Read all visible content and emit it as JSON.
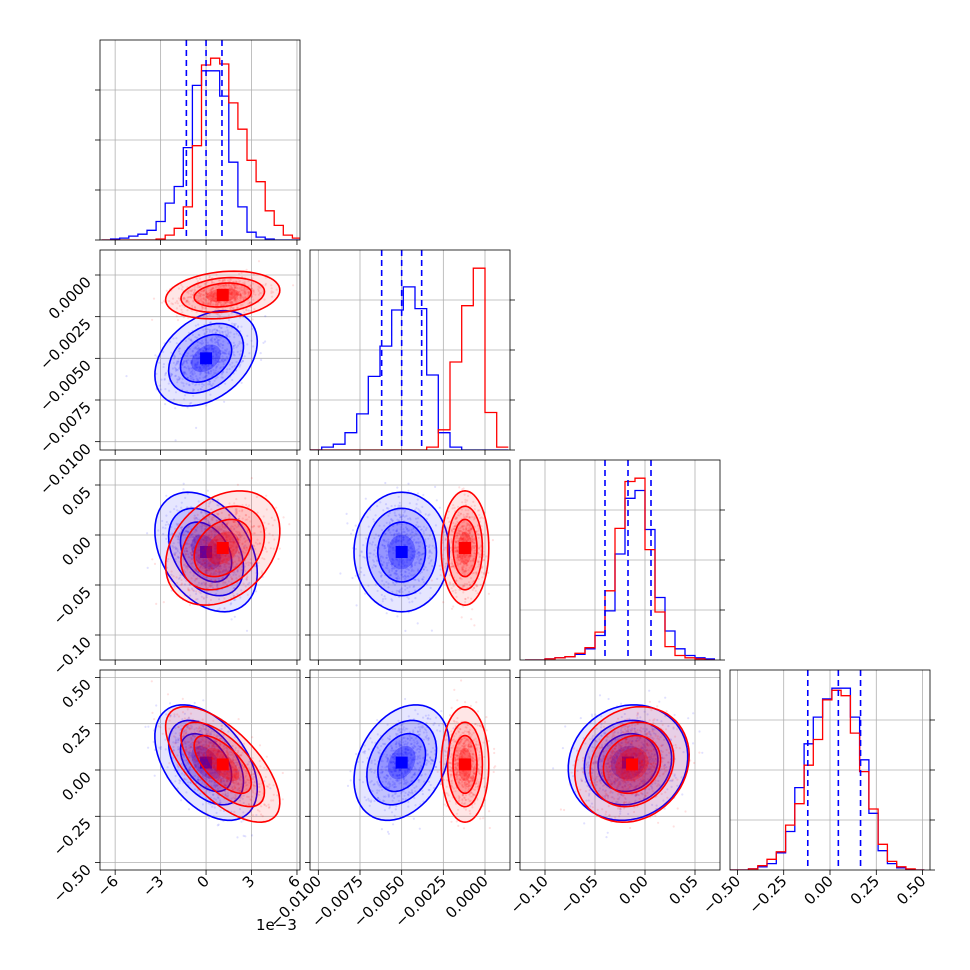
{
  "chart_data": {
    "type": "corner",
    "grid": true,
    "colors": {
      "blue": "#0000ff",
      "red": "#ff0000"
    },
    "series": [
      {
        "color": "blue"
      },
      {
        "color": "red"
      }
    ],
    "params": [
      {
        "range": [
          -7,
          6.2
        ],
        "ticks": [
          -6,
          -3,
          0,
          3,
          6
        ],
        "tick_labels": [
          "−6",
          "−3",
          "0",
          "3",
          "6"
        ],
        "offset_label": "1e−3",
        "quantiles": [
          -1.3,
          0.0,
          1.05
        ],
        "hist": {
          "bins": [
            -6.9,
            -6.3,
            -5.7,
            -5.1,
            -4.5,
            -3.9,
            -3.3,
            -2.7,
            -2.1,
            -1.5,
            -0.9,
            -0.3,
            0.3,
            0.9,
            1.5,
            2.1,
            2.7,
            3.3,
            3.9,
            4.5,
            5.1,
            5.7,
            6.3
          ],
          "blue": [
            0,
            1,
            2,
            4,
            6,
            10,
            19,
            38,
            55,
            95,
            159,
            174,
            174,
            148,
            80,
            34,
            8,
            3,
            1,
            0,
            0,
            0
          ],
          "red": [
            0,
            0,
            0,
            0,
            0,
            0,
            1,
            5,
            12,
            34,
            97,
            180,
            187,
            181,
            141,
            114,
            82,
            60,
            30,
            15,
            5,
            2
          ]
        }
      },
      {
        "range": [
          -0.0105,
          0.0015
        ],
        "ticks": [
          -0.01,
          -0.0075,
          -0.005,
          -0.0025,
          0.0
        ],
        "tick_labels": [
          "−0.0100",
          "−0.0075",
          "−0.0050",
          "−0.0025",
          "0.0000"
        ],
        "quantiles": [
          -0.0062,
          -0.005,
          -0.0038
        ],
        "hist": {
          "bins": [
            -0.0105,
            -0.0098,
            -0.0091,
            -0.0084,
            -0.0077,
            -0.007,
            -0.0063,
            -0.0056,
            -0.0049,
            -0.0042,
            -0.0035,
            -0.0028,
            -0.0021,
            -0.0014,
            -0.0007,
            0.0,
            0.0007,
            0.0014
          ],
          "blue": [
            0,
            2,
            4,
            12,
            25,
            51,
            72,
            97,
            113,
            98,
            52,
            12,
            2,
            0,
            0,
            0,
            0
          ],
          "red": [
            0,
            0,
            0,
            0,
            0,
            0,
            0,
            0,
            0,
            0,
            2,
            14,
            61,
            100,
            126,
            26,
            2
          ]
        }
      },
      {
        "range": [
          -0.125,
          0.075
        ],
        "ticks": [
          -0.1,
          -0.05,
          0.0,
          0.05
        ],
        "tick_labels": [
          "−0.10",
          "−0.05",
          "0.00",
          "0.05"
        ],
        "quantiles": [
          -0.04,
          -0.017,
          0.006
        ],
        "hist": {
          "bins": [
            -0.12,
            -0.11,
            -0.1,
            -0.09,
            -0.08,
            -0.07,
            -0.06,
            -0.05,
            -0.04,
            -0.03,
            -0.02,
            -0.01,
            0.0,
            0.01,
            0.02,
            0.03,
            0.04,
            0.05,
            0.06,
            0.07
          ],
          "blue": [
            0,
            0,
            1,
            2,
            3,
            5,
            10,
            22,
            44,
            95,
            145,
            152,
            117,
            56,
            26,
            10,
            4,
            2,
            1
          ],
          "red": [
            0,
            0,
            1,
            2,
            3,
            6,
            11,
            25,
            62,
            118,
            160,
            163,
            99,
            43,
            12,
            4,
            2,
            1,
            0
          ]
        }
      },
      {
        "range": [
          -0.54,
          0.54
        ],
        "ticks": [
          -0.5,
          -0.25,
          0.0,
          0.25,
          0.5
        ],
        "tick_labels": [
          "−0.50",
          "−0.25",
          "0.00",
          "0.25",
          "0.50"
        ],
        "quantiles": [
          -0.12,
          0.045,
          0.165
        ],
        "hist": {
          "bins": [
            -0.54,
            -0.49,
            -0.44,
            -0.39,
            -0.34,
            -0.29,
            -0.24,
            -0.19,
            -0.14,
            -0.09,
            -0.04,
            0.01,
            0.06,
            0.11,
            0.16,
            0.21,
            0.26,
            0.31,
            0.36,
            0.41,
            0.46,
            0.51
          ],
          "blue": [
            0,
            0,
            1,
            3,
            6,
            16,
            36,
            77,
            118,
            143,
            160,
            170,
            170,
            143,
            103,
            53,
            18,
            6,
            2,
            0,
            0
          ],
          "red": [
            0,
            0,
            1,
            4,
            10,
            17,
            42,
            62,
            98,
            122,
            159,
            168,
            163,
            128,
            92,
            57,
            24,
            8,
            3,
            1,
            0
          ]
        }
      }
    ],
    "pairs": [
      {
        "x": 0,
        "y": 1,
        "blue": {
          "mean": [
            0.0,
            -0.005
          ],
          "sd": [
            1.3,
            0.0011
          ],
          "rho": 0.35
        },
        "red": {
          "mean": [
            1.1,
            -0.0012
          ],
          "sd": [
            1.45,
            0.00055
          ],
          "rho": 0.2
        }
      },
      {
        "x": 0,
        "y": 2,
        "blue": {
          "mean": [
            0.0,
            -0.017
          ],
          "sd": [
            1.3,
            0.023
          ],
          "rho": -0.35
        },
        "red": {
          "mean": [
            1.1,
            -0.013
          ],
          "sd": [
            1.45,
            0.022
          ],
          "rho": 0.3
        }
      },
      {
        "x": 1,
        "y": 2,
        "blue": {
          "mean": [
            -0.005,
            -0.017
          ],
          "sd": [
            0.0011,
            0.023
          ],
          "rho": 0.0
        },
        "red": {
          "mean": [
            -0.0012,
            -0.013
          ],
          "sd": [
            0.00055,
            0.022
          ],
          "rho": 0.0
        }
      },
      {
        "x": 0,
        "y": 3,
        "blue": {
          "mean": [
            0.0,
            0.04
          ],
          "sd": [
            1.3,
            0.12
          ],
          "rho": -0.45
        },
        "red": {
          "mean": [
            1.1,
            0.03
          ],
          "sd": [
            1.45,
            0.12
          ],
          "rho": -0.65
        }
      },
      {
        "x": 1,
        "y": 3,
        "blue": {
          "mean": [
            -0.005,
            0.04
          ],
          "sd": [
            0.0011,
            0.12
          ],
          "rho": 0.3
        },
        "red": {
          "mean": [
            -0.0012,
            0.03
          ],
          "sd": [
            0.00055,
            0.12
          ],
          "rho": 0.0
        }
      },
      {
        "x": 2,
        "y": 3,
        "blue": {
          "mean": [
            -0.017,
            0.04
          ],
          "sd": [
            0.023,
            0.12
          ],
          "rho": 0.1
        },
        "red": {
          "mean": [
            -0.013,
            0.03
          ],
          "sd": [
            0.022,
            0.12
          ],
          "rho": 0.15
        }
      }
    ]
  }
}
